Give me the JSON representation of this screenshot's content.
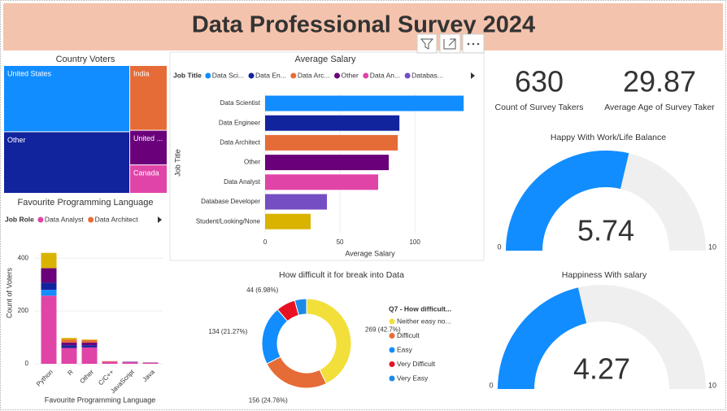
{
  "title": "Data Professional Survey 2024",
  "chart_data": [
    {
      "type": "treemap",
      "title": "Country Voters",
      "categories": [
        "United States",
        "Other",
        "India",
        "United ...",
        "Canada"
      ],
      "values": [
        252,
        234,
        73,
        39,
        32
      ],
      "colors": [
        "#118dff",
        "#12239e",
        "#e66c37",
        "#6b007b",
        "#e044a7"
      ]
    },
    {
      "type": "hbar",
      "title": "Average Salary",
      "legend_title": "Job Title",
      "legend_labels": [
        "Data Sci...",
        "Data En...",
        "Data Arc...",
        "Other",
        "Data An...",
        "Databas..."
      ],
      "categories": [
        "Data Scientist",
        "Data Engineer",
        "Data Architect",
        "Other",
        "Data Analyst",
        "Database Developer",
        "Student/Looking/None"
      ],
      "values": [
        132.6,
        89.7,
        88.6,
        82.6,
        75.5,
        41.3,
        30.4
      ],
      "colors": [
        "#118dff",
        "#12239e",
        "#e66c37",
        "#6b007b",
        "#e044a7",
        "#744ec2",
        "#d9b300"
      ],
      "xlabel": "Average Salary",
      "ylabel": "Job Title",
      "xlim": [
        0,
        145
      ],
      "xticks": [
        0,
        50,
        100
      ],
      "grid": true
    },
    {
      "type": "column_stacked",
      "title": "Favourite Programming Language",
      "legend_title": "Job Role",
      "categories": [
        "Python",
        "R",
        "Other",
        "C/C++",
        "JavaScript",
        "Java"
      ],
      "series": [
        {
          "name": "Data Analyst",
          "color": "#e044a7",
          "values": [
            258,
            60,
            62,
            8,
            6,
            4
          ]
        },
        {
          "name": null,
          "color": "#118dff",
          "values": [
            22,
            0,
            0,
            0,
            0,
            0
          ]
        },
        {
          "name": null,
          "color": "#12239e",
          "values": [
            27,
            10,
            8,
            0,
            1,
            0
          ]
        },
        {
          "name": null,
          "color": "#6b007b",
          "values": [
            55,
            10,
            10,
            0,
            1,
            1
          ]
        },
        {
          "name": "Data Architect",
          "color": "#e66c37",
          "values": [
            0,
            12,
            10,
            2,
            0,
            0
          ]
        },
        {
          "name": null,
          "color": "#d9b300",
          "values": [
            58,
            6,
            2,
            0,
            0,
            0
          ]
        }
      ],
      "xlabel": "Favourite Programming Language",
      "ylabel": "Count of Voters",
      "ylim": [
        0,
        450
      ],
      "yticks": [
        0,
        200,
        400
      ],
      "grid": true
    },
    {
      "type": "donut",
      "title": "How difficult it for break into Data",
      "legend_title": "Q7 - How difficult...",
      "categories": [
        "Neither easy no...",
        "Difficult",
        "Easy",
        "Very Difficult",
        "Very Easy"
      ],
      "values": [
        269,
        156,
        134,
        44,
        27
      ],
      "value_labels": [
        "269 (42.7%)",
        "156 (24.76%)",
        "134 (21.27%)",
        "44 (6.98%)",
        null
      ],
      "colors": [
        "#f2df3a",
        "#e66c37",
        "#118dff",
        "#e81123",
        "#1a8ae6"
      ]
    },
    {
      "type": "card",
      "value": 630,
      "label": "Count of Survey Takers"
    },
    {
      "type": "card",
      "value": 29.87,
      "label": "Average Age of Survey Taker"
    },
    {
      "type": "gauge",
      "title": "Happy With Work/Life Balance",
      "value": 5.74,
      "ylim": [
        0,
        10
      ],
      "yticks": [
        0,
        10
      ],
      "color": "#118dff"
    },
    {
      "type": "gauge",
      "title": "Happiness With salary",
      "value": 4.27,
      "ylim": [
        0,
        10
      ],
      "yticks": [
        0,
        10
      ],
      "color": "#118dff"
    }
  ]
}
